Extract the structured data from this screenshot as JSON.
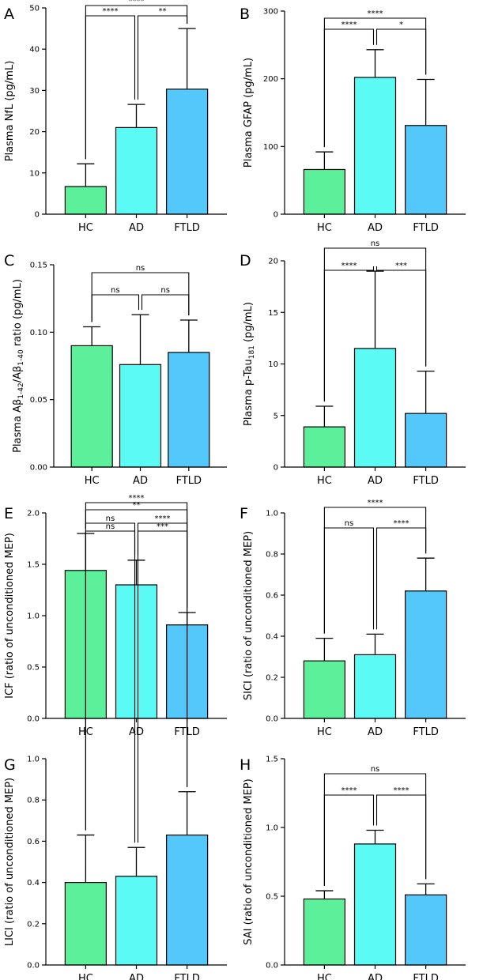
{
  "chart_data": [
    {
      "panel": "A",
      "type": "bar",
      "categories": [
        "HC",
        "AD",
        "FTLD"
      ],
      "values": [
        6.7,
        21.0,
        30.3
      ],
      "errors": [
        12.2,
        26.6,
        45.0
      ],
      "ylabel": "Plasma NfL (pg/mL)",
      "ylim": [
        0,
        50
      ],
      "yticks": [
        0,
        10,
        20,
        30,
        40,
        50
      ],
      "ytick_labels": [
        "0",
        "10",
        "20",
        "30",
        "40",
        "50"
      ],
      "comparisons": [
        {
          "pair": [
            0,
            1
          ],
          "label": "****"
        },
        {
          "pair": [
            1,
            2
          ],
          "label": "**"
        },
        {
          "pair": [
            0,
            2
          ],
          "label": "****"
        }
      ]
    },
    {
      "panel": "B",
      "type": "bar",
      "categories": [
        "HC",
        "AD",
        "FTLD"
      ],
      "values": [
        66,
        202,
        131
      ],
      "errors": [
        92,
        243,
        199
      ],
      "ylabel": "Plasma GFAP (pg/mL)",
      "ylim": [
        0,
        300
      ],
      "yticks": [
        0,
        100,
        200,
        300
      ],
      "ytick_labels": [
        "0",
        "100",
        "200",
        "300"
      ],
      "comparisons": [
        {
          "pair": [
            0,
            1
          ],
          "label": "****"
        },
        {
          "pair": [
            1,
            2
          ],
          "label": "*"
        },
        {
          "pair": [
            0,
            2
          ],
          "label": "****"
        }
      ]
    },
    {
      "panel": "C",
      "type": "bar",
      "categories": [
        "HC",
        "AD",
        "FTLD"
      ],
      "values": [
        0.09,
        0.076,
        0.085
      ],
      "errors": [
        0.104,
        0.113,
        0.109
      ],
      "ylabel_parts": [
        "Plasma A",
        "β",
        "1-42",
        "/A",
        "β",
        "1-40",
        " ratio (pg/mL)"
      ],
      "ylim": [
        0,
        0.15
      ],
      "yticks": [
        0,
        0.05,
        0.1,
        0.15
      ],
      "ytick_labels": [
        "0.00",
        "0.05",
        "0.10",
        "0.15"
      ],
      "comparisons": [
        {
          "pair": [
            0,
            1
          ],
          "label": "ns"
        },
        {
          "pair": [
            1,
            2
          ],
          "label": "ns"
        },
        {
          "pair": [
            0,
            2
          ],
          "label": "ns"
        }
      ]
    },
    {
      "panel": "D",
      "type": "bar",
      "categories": [
        "HC",
        "AD",
        "FTLD"
      ],
      "values": [
        3.9,
        11.5,
        5.2
      ],
      "errors": [
        5.9,
        19.0,
        9.3
      ],
      "ylabel_parts": [
        "Plasma p-Tau",
        "181",
        " (pg/mL)"
      ],
      "ylim": [
        0,
        20
      ],
      "yticks": [
        0,
        5,
        10,
        15,
        20
      ],
      "ytick_labels": [
        "0",
        "5",
        "10",
        "15",
        "20"
      ],
      "comparisons": [
        {
          "pair": [
            0,
            1
          ],
          "label": "****"
        },
        {
          "pair": [
            1,
            2
          ],
          "label": "***"
        },
        {
          "pair": [
            0,
            2
          ],
          "label": "ns"
        }
      ]
    },
    {
      "panel": "E",
      "type": "bar",
      "categories": [
        "HC",
        "AD",
        "FTLD"
      ],
      "values": [
        1.44,
        1.3,
        0.91
      ],
      "errors": [
        1.8,
        1.54,
        1.03
      ],
      "ylabel": "ICF (ratio of unconditioned MEP)",
      "ylim": [
        0,
        2.0
      ],
      "yticks": [
        0,
        0.5,
        1.0,
        1.5,
        2.0
      ],
      "ytick_labels": [
        "0.0",
        "0.5",
        "1.0",
        "1.5",
        "2.0"
      ],
      "comparisons": [
        {
          "pair": [
            0,
            1
          ],
          "label": "ns"
        },
        {
          "pair": [
            1,
            2
          ],
          "label": "****"
        },
        {
          "pair": [
            0,
            2
          ],
          "label": "****"
        }
      ]
    },
    {
      "panel": "F",
      "type": "bar",
      "categories": [
        "HC",
        "AD",
        "FTLD"
      ],
      "values": [
        0.28,
        0.31,
        0.62
      ],
      "errors": [
        0.39,
        0.41,
        0.78
      ],
      "ylabel": "SICI (ratio of unconditioned MEP)",
      "ylim": [
        0,
        1.0
      ],
      "yticks": [
        0,
        0.2,
        0.4,
        0.6,
        0.8,
        1.0
      ],
      "ytick_labels": [
        "0.0",
        "0.2",
        "0.4",
        "0.6",
        "0.8",
        "1.0"
      ],
      "comparisons": [
        {
          "pair": [
            0,
            1
          ],
          "label": "ns"
        },
        {
          "pair": [
            1,
            2
          ],
          "label": "****"
        },
        {
          "pair": [
            0,
            2
          ],
          "label": "****"
        }
      ]
    },
    {
      "panel": "G",
      "type": "bar",
      "categories": [
        "HC",
        "AD",
        "FTLD"
      ],
      "values": [
        0.4,
        0.43,
        0.63
      ],
      "errors": [
        0.63,
        0.57,
        0.84
      ],
      "ylabel": "LICI (ratio of unconditioned MEP)",
      "ylim": [
        0,
        1.0
      ],
      "yticks": [
        0,
        0.2,
        0.4,
        0.6,
        0.8,
        1.0
      ],
      "ytick_labels": [
        "0.0",
        "0.2",
        "0.4",
        "0.6",
        "0.8",
        "1.0"
      ],
      "comparisons": [
        {
          "pair": [
            0,
            1
          ],
          "label": "ns"
        },
        {
          "pair": [
            1,
            2
          ],
          "label": "***"
        },
        {
          "pair": [
            0,
            2
          ],
          "label": "**"
        }
      ]
    },
    {
      "panel": "H",
      "type": "bar",
      "categories": [
        "HC",
        "AD",
        "FTLD"
      ],
      "values": [
        0.48,
        0.88,
        0.51
      ],
      "errors": [
        0.54,
        0.98,
        0.59
      ],
      "ylabel": "SAI (ratio of unconditioned MEP)",
      "ylim": [
        0,
        1.5
      ],
      "yticks": [
        0,
        0.5,
        1.0,
        1.5
      ],
      "ytick_labels": [
        "0.0",
        "0.5",
        "1.0",
        "1.5"
      ],
      "comparisons": [
        {
          "pair": [
            0,
            1
          ],
          "label": "****"
        },
        {
          "pair": [
            1,
            2
          ],
          "label": "****"
        },
        {
          "pair": [
            0,
            2
          ],
          "label": "ns"
        }
      ]
    }
  ],
  "colors": {
    "HC": "#5cf09a",
    "AD": "#5cfaf4",
    "FTLD": "#55c8fb"
  }
}
